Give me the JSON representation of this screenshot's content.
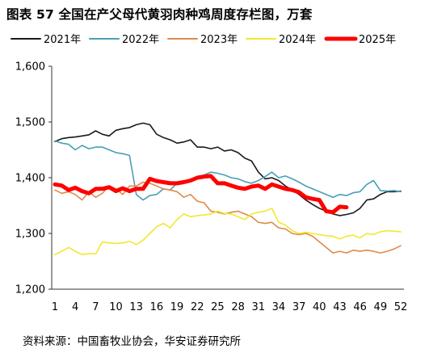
{
  "title": "图表 57  全国在产父母代黄羽肉种鸡周度存栏图，万套",
  "source": "资料来源：中国畜牧业协会，华安证券研究所",
  "chart_data": {
    "type": "line",
    "title": "图表 57  全国在产父母代黄羽肉种鸡周度存栏图，万套",
    "xlabel": "",
    "ylabel": "",
    "xlim": [
      1,
      52
    ],
    "ylim": [
      1200,
      1600
    ],
    "yticks": [
      1200,
      1300,
      1400,
      1500,
      1600
    ],
    "ytick_labels": [
      "1,200",
      "1,300",
      "1,400",
      "1,500",
      "1,600"
    ],
    "xticks": [
      1,
      4,
      7,
      10,
      13,
      16,
      19,
      22,
      25,
      28,
      31,
      34,
      37,
      40,
      43,
      46,
      49,
      52
    ],
    "xtick_labels": [
      "1",
      "4",
      "7",
      "10",
      "13",
      "16",
      "19",
      "22",
      "25",
      "28",
      "31",
      "34",
      "37",
      "40",
      "43",
      "46",
      "49",
      "52"
    ],
    "grid": false,
    "legend_position": "top",
    "series": [
      {
        "name": "2021年",
        "color": "#1a1a1a",
        "width": 1.6,
        "x": [
          1,
          2,
          3,
          4,
          5,
          6,
          7,
          8,
          9,
          10,
          11,
          12,
          13,
          14,
          15,
          16,
          17,
          18,
          19,
          20,
          21,
          22,
          23,
          24,
          25,
          26,
          27,
          28,
          29,
          30,
          31,
          32,
          33,
          34,
          35,
          36,
          37,
          38,
          39,
          40,
          41,
          42,
          43,
          44,
          45,
          46,
          47,
          48,
          49,
          50,
          51,
          52
        ],
        "values": [
          1465,
          1470,
          1472,
          1473,
          1475,
          1477,
          1484,
          1478,
          1475,
          1485,
          1488,
          1490,
          1495,
          1498,
          1495,
          1478,
          1472,
          1468,
          1462,
          1464,
          1468,
          1455,
          1455,
          1452,
          1455,
          1448,
          1450,
          1445,
          1435,
          1430,
          1410,
          1398,
          1400,
          1395,
          1385,
          1378,
          1370,
          1360,
          1352,
          1345,
          1340,
          1335,
          1332,
          1334,
          1337,
          1345,
          1360,
          1362,
          1370,
          1375,
          1375,
          1376
        ]
      },
      {
        "name": "2022年",
        "color": "#4a9fb5",
        "width": 1.6,
        "x": [
          1,
          2,
          3,
          4,
          5,
          6,
          7,
          8,
          9,
          10,
          11,
          12,
          13,
          14,
          15,
          16,
          17,
          18,
          19,
          20,
          21,
          22,
          23,
          24,
          25,
          26,
          27,
          28,
          29,
          30,
          31,
          32,
          33,
          34,
          35,
          36,
          37,
          38,
          39,
          40,
          41,
          42,
          43,
          44,
          45,
          46,
          47,
          48,
          49,
          50,
          51,
          52
        ],
        "values": [
          1466,
          1462,
          1460,
          1450,
          1458,
          1452,
          1455,
          1455,
          1450,
          1445,
          1443,
          1440,
          1370,
          1360,
          1368,
          1370,
          1380,
          1378,
          1390,
          1395,
          1395,
          1400,
          1405,
          1410,
          1408,
          1405,
          1400,
          1398,
          1393,
          1390,
          1395,
          1402,
          1410,
          1400,
          1403,
          1398,
          1392,
          1385,
          1380,
          1375,
          1370,
          1365,
          1370,
          1368,
          1373,
          1375,
          1388,
          1395,
          1377,
          1376,
          1377,
          1375
        ]
      },
      {
        "name": "2023年",
        "color": "#e08a4a",
        "width": 1.6,
        "x": [
          1,
          2,
          3,
          4,
          5,
          6,
          7,
          8,
          9,
          10,
          11,
          12,
          13,
          14,
          15,
          16,
          17,
          18,
          19,
          20,
          21,
          22,
          23,
          24,
          25,
          26,
          27,
          28,
          29,
          30,
          31,
          32,
          33,
          34,
          35,
          36,
          37,
          38,
          39,
          40,
          41,
          42,
          43,
          44,
          45,
          46,
          47,
          48,
          49,
          50,
          51,
          52
        ],
        "values": [
          1378,
          1372,
          1375,
          1370,
          1360,
          1375,
          1365,
          1372,
          1385,
          1380,
          1370,
          1385,
          1385,
          1392,
          1390,
          1385,
          1380,
          1378,
          1375,
          1365,
          1370,
          1358,
          1355,
          1340,
          1338,
          1335,
          1338,
          1340,
          1335,
          1330,
          1320,
          1318,
          1320,
          1310,
          1308,
          1300,
          1298,
          1300,
          1295,
          1285,
          1275,
          1265,
          1268,
          1265,
          1270,
          1268,
          1270,
          1268,
          1265,
          1268,
          1272,
          1278
        ]
      },
      {
        "name": "2024年",
        "color": "#f2e832",
        "width": 1.6,
        "x": [
          1,
          2,
          3,
          4,
          5,
          6,
          7,
          8,
          9,
          10,
          11,
          12,
          13,
          14,
          15,
          16,
          17,
          18,
          19,
          20,
          21,
          22,
          23,
          24,
          25,
          26,
          27,
          28,
          29,
          30,
          31,
          32,
          33,
          34,
          35,
          36,
          37,
          38,
          39,
          40,
          41,
          42,
          43,
          44,
          45,
          46,
          47,
          48,
          49,
          50,
          51,
          52
        ],
        "values": [
          1262,
          1268,
          1275,
          1268,
          1262,
          1264,
          1263,
          1285,
          1283,
          1282,
          1283,
          1286,
          1280,
          1288,
          1300,
          1312,
          1318,
          1310,
          1325,
          1335,
          1330,
          1332,
          1333,
          1335,
          1340,
          1336,
          1335,
          1330,
          1325,
          1335,
          1338,
          1340,
          1345,
          1320,
          1315,
          1305,
          1300,
          1302,
          1300,
          1298,
          1296,
          1295,
          1290,
          1295,
          1297,
          1292,
          1300,
          1298,
          1303,
          1305,
          1304,
          1303
        ]
      },
      {
        "name": "2025年",
        "color": "#ff0000",
        "width": 5,
        "x": [
          1,
          2,
          3,
          4,
          5,
          6,
          7,
          8,
          9,
          10,
          11,
          12,
          13,
          14,
          15,
          16,
          17,
          18,
          19,
          20,
          21,
          22,
          23,
          24,
          25,
          26,
          27,
          28,
          29,
          30,
          31,
          32,
          33,
          34,
          35,
          36,
          37,
          38,
          39,
          40,
          41,
          42,
          43,
          44
        ],
        "values": [
          1388,
          1386,
          1378,
          1382,
          1376,
          1372,
          1380,
          1380,
          1383,
          1376,
          1381,
          1376,
          1380,
          1380,
          1398,
          1394,
          1392,
          1390,
          1390,
          1392,
          1395,
          1400,
          1402,
          1403,
          1390,
          1390,
          1386,
          1382,
          1380,
          1384,
          1386,
          1380,
          1388,
          1384,
          1380,
          1378,
          1374,
          1365,
          1362,
          1360,
          1340,
          1338,
          1348,
          1347
        ]
      }
    ]
  }
}
